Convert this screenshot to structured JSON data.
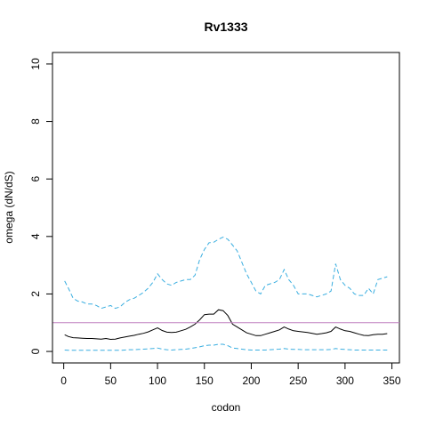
{
  "chart_data": {
    "type": "line",
    "title": "Rv1333",
    "xlabel": "codon",
    "ylabel": "omega (dN/dS)",
    "xlim": [
      -12,
      358
    ],
    "ylim": [
      -0.4,
      10.4
    ],
    "xticks": [
      0,
      50,
      100,
      150,
      200,
      250,
      300,
      350
    ],
    "yticks": [
      0,
      2,
      4,
      6,
      8,
      10
    ],
    "reference_line": {
      "y": 1,
      "color": "#c080c0"
    },
    "colors": {
      "estimate": "#000000",
      "bounds": "#3aaee0"
    },
    "x": [
      1,
      5,
      10,
      15,
      20,
      25,
      30,
      35,
      40,
      45,
      50,
      55,
      60,
      65,
      70,
      75,
      80,
      85,
      90,
      95,
      100,
      105,
      110,
      115,
      120,
      125,
      130,
      135,
      140,
      145,
      150,
      155,
      160,
      165,
      170,
      175,
      180,
      185,
      190,
      195,
      200,
      205,
      210,
      215,
      220,
      225,
      230,
      235,
      240,
      245,
      250,
      255,
      260,
      265,
      270,
      275,
      280,
      285,
      290,
      295,
      300,
      305,
      310,
      315,
      320,
      325,
      330,
      335,
      340,
      345
    ],
    "series": [
      {
        "role": "estimate",
        "style": "solid",
        "values": [
          0.58,
          0.52,
          0.48,
          0.47,
          0.46,
          0.45,
          0.45,
          0.44,
          0.43,
          0.45,
          0.42,
          0.43,
          0.47,
          0.5,
          0.53,
          0.56,
          0.6,
          0.63,
          0.68,
          0.75,
          0.82,
          0.73,
          0.67,
          0.66,
          0.67,
          0.72,
          0.77,
          0.85,
          0.95,
          1.1,
          1.28,
          1.3,
          1.3,
          1.45,
          1.42,
          1.25,
          0.95,
          0.85,
          0.75,
          0.65,
          0.6,
          0.55,
          0.55,
          0.6,
          0.65,
          0.7,
          0.75,
          0.85,
          0.78,
          0.72,
          0.7,
          0.68,
          0.66,
          0.63,
          0.6,
          0.62,
          0.65,
          0.7,
          0.85,
          0.78,
          0.72,
          0.7,
          0.65,
          0.6,
          0.56,
          0.55,
          0.58,
          0.6,
          0.6,
          0.62
        ]
      },
      {
        "role": "upper",
        "style": "dashed",
        "values": [
          2.45,
          2.2,
          1.85,
          1.75,
          1.72,
          1.65,
          1.65,
          1.6,
          1.5,
          1.55,
          1.6,
          1.5,
          1.55,
          1.7,
          1.8,
          1.85,
          1.95,
          2.05,
          2.2,
          2.4,
          2.7,
          2.5,
          2.35,
          2.3,
          2.4,
          2.45,
          2.5,
          2.5,
          2.65,
          3.2,
          3.55,
          3.78,
          3.8,
          3.9,
          3.98,
          3.9,
          3.7,
          3.5,
          3.1,
          2.7,
          2.4,
          2.1,
          2.0,
          2.3,
          2.35,
          2.4,
          2.5,
          2.85,
          2.5,
          2.3,
          2.0,
          2.0,
          2.0,
          1.95,
          1.9,
          1.95,
          2.0,
          2.1,
          3.05,
          2.5,
          2.3,
          2.2,
          2.0,
          1.95,
          1.95,
          2.2,
          2.0,
          2.5,
          2.55,
          2.6
        ]
      },
      {
        "role": "lower",
        "style": "dashed",
        "values": [
          0.05,
          0.04,
          0.04,
          0.04,
          0.04,
          0.04,
          0.04,
          0.04,
          0.04,
          0.04,
          0.04,
          0.04,
          0.04,
          0.05,
          0.06,
          0.06,
          0.07,
          0.08,
          0.09,
          0.1,
          0.12,
          0.08,
          0.06,
          0.05,
          0.06,
          0.07,
          0.08,
          0.1,
          0.13,
          0.16,
          0.2,
          0.22,
          0.22,
          0.25,
          0.25,
          0.2,
          0.12,
          0.1,
          0.08,
          0.06,
          0.05,
          0.05,
          0.05,
          0.05,
          0.06,
          0.07,
          0.08,
          0.1,
          0.08,
          0.07,
          0.07,
          0.06,
          0.06,
          0.06,
          0.06,
          0.06,
          0.06,
          0.07,
          0.1,
          0.08,
          0.07,
          0.06,
          0.05,
          0.05,
          0.05,
          0.05,
          0.05,
          0.05,
          0.05,
          0.05
        ]
      }
    ]
  }
}
